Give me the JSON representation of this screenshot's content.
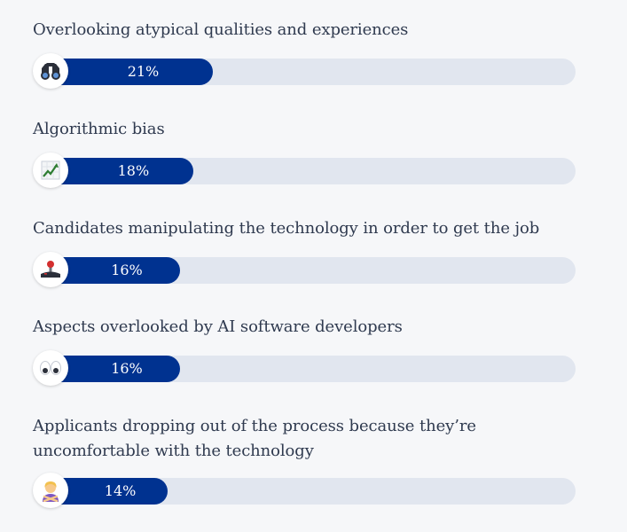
{
  "chart_data": {
    "type": "bar",
    "orientation": "horizontal",
    "categories": [
      "Overlooking atypical qualities and experiences",
      "Algorithmic bias",
      "Candidates manipulating the technology in order to get the job",
      "Aspects overlooked by AI software developers",
      "Applicants dropping out of the process because they’re uncomfortable with the technology"
    ],
    "values": [
      21,
      18,
      16,
      16,
      14
    ],
    "value_labels": [
      "21%",
      "18%",
      "16%",
      "16%",
      "14%"
    ],
    "icons": [
      "binoculars-icon",
      "trending-chart-icon",
      "joystick-icon",
      "eyes-icon",
      "person-gesturing-no-icon"
    ],
    "xlim": [
      0,
      100
    ],
    "title": "",
    "xlabel": "",
    "ylabel": "",
    "grid": false,
    "colors": {
      "bar_fill": "#003290",
      "track": "#e1e6ef",
      "background": "#f6f7f9",
      "label_text": "#2f3a4f",
      "value_text": "#ffffff"
    }
  }
}
